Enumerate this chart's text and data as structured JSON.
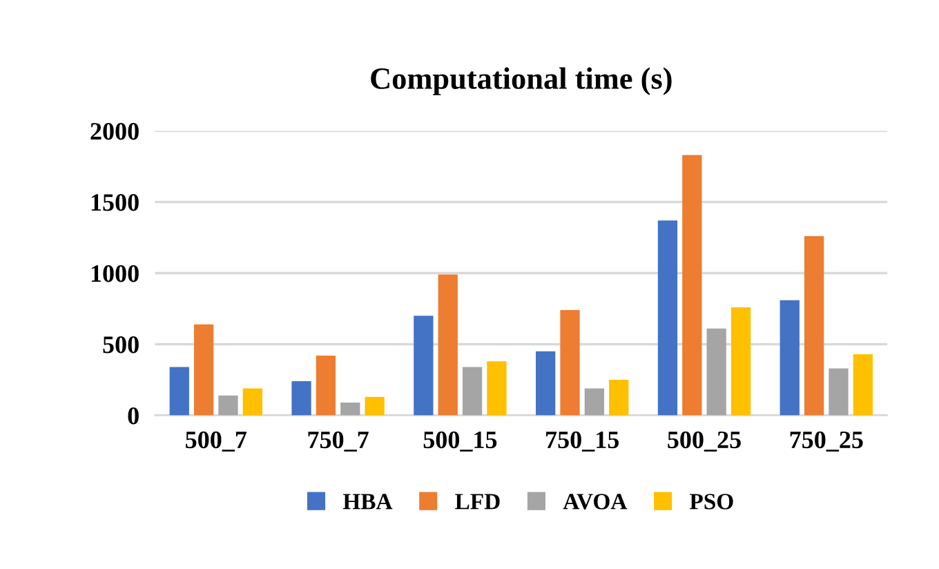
{
  "chart_data": {
    "type": "bar",
    "title": "Computational time (s)",
    "categories": [
      "500_7",
      "750_7",
      "500_15",
      "750_15",
      "500_25",
      "750_25"
    ],
    "series": [
      {
        "name": "HBA",
        "color": "#4472c4",
        "values": [
          340,
          240,
          700,
          450,
          1370,
          810
        ]
      },
      {
        "name": "LFD",
        "color": "#ed7d31",
        "values": [
          640,
          420,
          990,
          740,
          1830,
          1260
        ]
      },
      {
        "name": "AVOA",
        "color": "#a5a5a5",
        "values": [
          140,
          90,
          340,
          190,
          610,
          330
        ]
      },
      {
        "name": "PSO",
        "color": "#ffc000",
        "values": [
          190,
          130,
          380,
          250,
          760,
          430
        ]
      }
    ],
    "ylim": [
      0,
      2000
    ],
    "yticks": [
      0,
      500,
      1000,
      1500,
      2000
    ],
    "grid": "y",
    "legend": "bottom"
  }
}
